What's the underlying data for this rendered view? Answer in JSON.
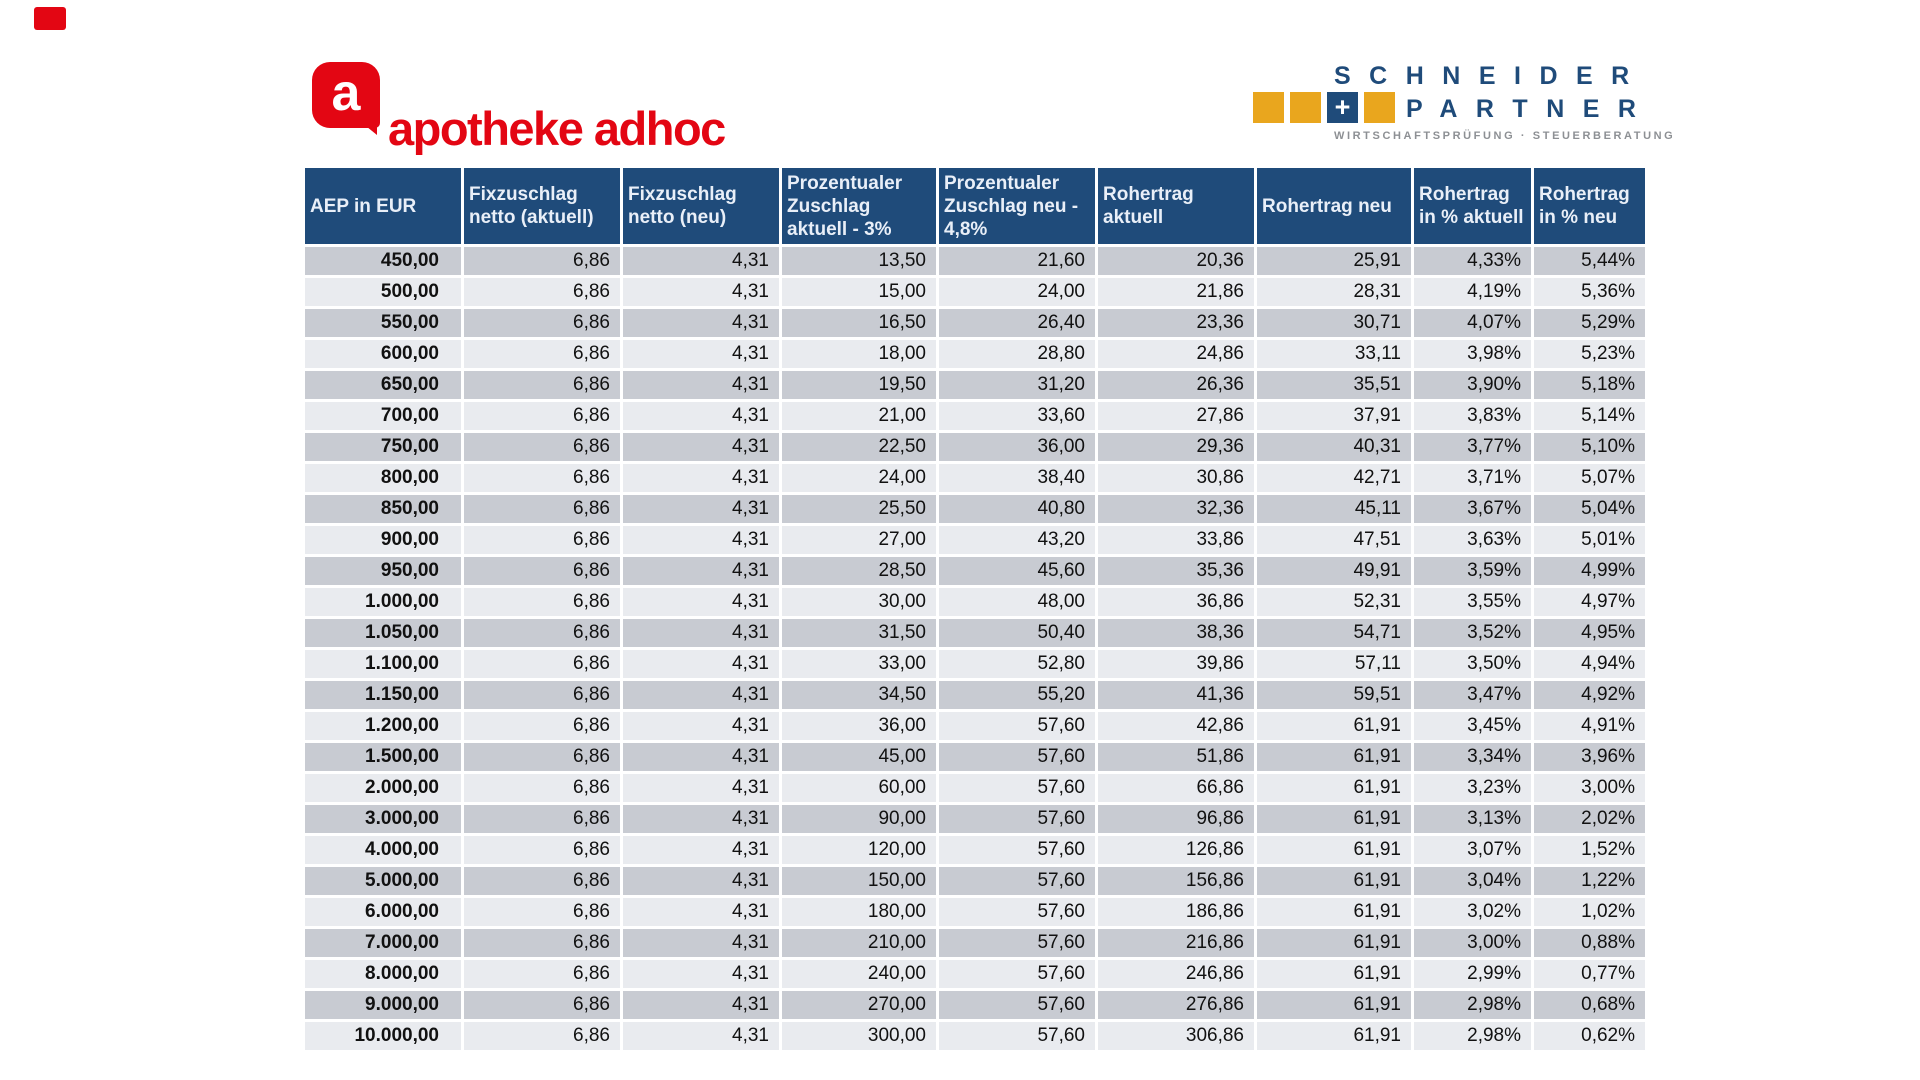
{
  "marker": {
    "color": "#e30613"
  },
  "logos": {
    "apotheke_adhoc": {
      "icon_letter": "a",
      "text": "apotheke adhoc",
      "color": "#e30613"
    },
    "schneider_partner": {
      "line1": "SCHNEIDER",
      "line2": "PARTNER",
      "plus": "+",
      "tagline": "WIRTSCHAFTSPRÜFUNG · STEUERBERATUNG",
      "navy": "#1f4b7a",
      "gold": "#e9a61e"
    }
  },
  "table": {
    "colors": {
      "header_bg": "#1f4b7a",
      "header_text": "#e9eff8",
      "row_dark": "#c8cbd2",
      "row_light": "#e9ebef"
    },
    "columns": [
      "AEP in EUR",
      "Fixzuschlag netto (aktuell)",
      "Fixzuschlag netto (neu)",
      "Prozentualer Zuschlag aktuell - 3%",
      "Prozentualer Zuschlag neu - 4,8%",
      "Rohertrag aktuell",
      "Rohertrag neu",
      "Rohertrag in % aktuell",
      "Rohertrag in % neu"
    ],
    "rows": [
      [
        "450,00",
        "6,86",
        "4,31",
        "13,50",
        "21,60",
        "20,36",
        "25,91",
        "4,33%",
        "5,44%"
      ],
      [
        "500,00",
        "6,86",
        "4,31",
        "15,00",
        "24,00",
        "21,86",
        "28,31",
        "4,19%",
        "5,36%"
      ],
      [
        "550,00",
        "6,86",
        "4,31",
        "16,50",
        "26,40",
        "23,36",
        "30,71",
        "4,07%",
        "5,29%"
      ],
      [
        "600,00",
        "6,86",
        "4,31",
        "18,00",
        "28,80",
        "24,86",
        "33,11",
        "3,98%",
        "5,23%"
      ],
      [
        "650,00",
        "6,86",
        "4,31",
        "19,50",
        "31,20",
        "26,36",
        "35,51",
        "3,90%",
        "5,18%"
      ],
      [
        "700,00",
        "6,86",
        "4,31",
        "21,00",
        "33,60",
        "27,86",
        "37,91",
        "3,83%",
        "5,14%"
      ],
      [
        "750,00",
        "6,86",
        "4,31",
        "22,50",
        "36,00",
        "29,36",
        "40,31",
        "3,77%",
        "5,10%"
      ],
      [
        "800,00",
        "6,86",
        "4,31",
        "24,00",
        "38,40",
        "30,86",
        "42,71",
        "3,71%",
        "5,07%"
      ],
      [
        "850,00",
        "6,86",
        "4,31",
        "25,50",
        "40,80",
        "32,36",
        "45,11",
        "3,67%",
        "5,04%"
      ],
      [
        "900,00",
        "6,86",
        "4,31",
        "27,00",
        "43,20",
        "33,86",
        "47,51",
        "3,63%",
        "5,01%"
      ],
      [
        "950,00",
        "6,86",
        "4,31",
        "28,50",
        "45,60",
        "35,36",
        "49,91",
        "3,59%",
        "4,99%"
      ],
      [
        "1.000,00",
        "6,86",
        "4,31",
        "30,00",
        "48,00",
        "36,86",
        "52,31",
        "3,55%",
        "4,97%"
      ],
      [
        "1.050,00",
        "6,86",
        "4,31",
        "31,50",
        "50,40",
        "38,36",
        "54,71",
        "3,52%",
        "4,95%"
      ],
      [
        "1.100,00",
        "6,86",
        "4,31",
        "33,00",
        "52,80",
        "39,86",
        "57,11",
        "3,50%",
        "4,94%"
      ],
      [
        "1.150,00",
        "6,86",
        "4,31",
        "34,50",
        "55,20",
        "41,36",
        "59,51",
        "3,47%",
        "4,92%"
      ],
      [
        "1.200,00",
        "6,86",
        "4,31",
        "36,00",
        "57,60",
        "42,86",
        "61,91",
        "3,45%",
        "4,91%"
      ],
      [
        "1.500,00",
        "6,86",
        "4,31",
        "45,00",
        "57,60",
        "51,86",
        "61,91",
        "3,34%",
        "3,96%"
      ],
      [
        "2.000,00",
        "6,86",
        "4,31",
        "60,00",
        "57,60",
        "66,86",
        "61,91",
        "3,23%",
        "3,00%"
      ],
      [
        "3.000,00",
        "6,86",
        "4,31",
        "90,00",
        "57,60",
        "96,86",
        "61,91",
        "3,13%",
        "2,02%"
      ],
      [
        "4.000,00",
        "6,86",
        "4,31",
        "120,00",
        "57,60",
        "126,86",
        "61,91",
        "3,07%",
        "1,52%"
      ],
      [
        "5.000,00",
        "6,86",
        "4,31",
        "150,00",
        "57,60",
        "156,86",
        "61,91",
        "3,04%",
        "1,22%"
      ],
      [
        "6.000,00",
        "6,86",
        "4,31",
        "180,00",
        "57,60",
        "186,86",
        "61,91",
        "3,02%",
        "1,02%"
      ],
      [
        "7.000,00",
        "6,86",
        "4,31",
        "210,00",
        "57,60",
        "216,86",
        "61,91",
        "3,00%",
        "0,88%"
      ],
      [
        "8.000,00",
        "6,86",
        "4,31",
        "240,00",
        "57,60",
        "246,86",
        "61,91",
        "2,99%",
        "0,77%"
      ],
      [
        "9.000,00",
        "6,86",
        "4,31",
        "270,00",
        "57,60",
        "276,86",
        "61,91",
        "2,98%",
        "0,68%"
      ],
      [
        "10.000,00",
        "6,86",
        "4,31",
        "300,00",
        "57,60",
        "306,86",
        "61,91",
        "2,98%",
        "0,62%"
      ]
    ]
  }
}
